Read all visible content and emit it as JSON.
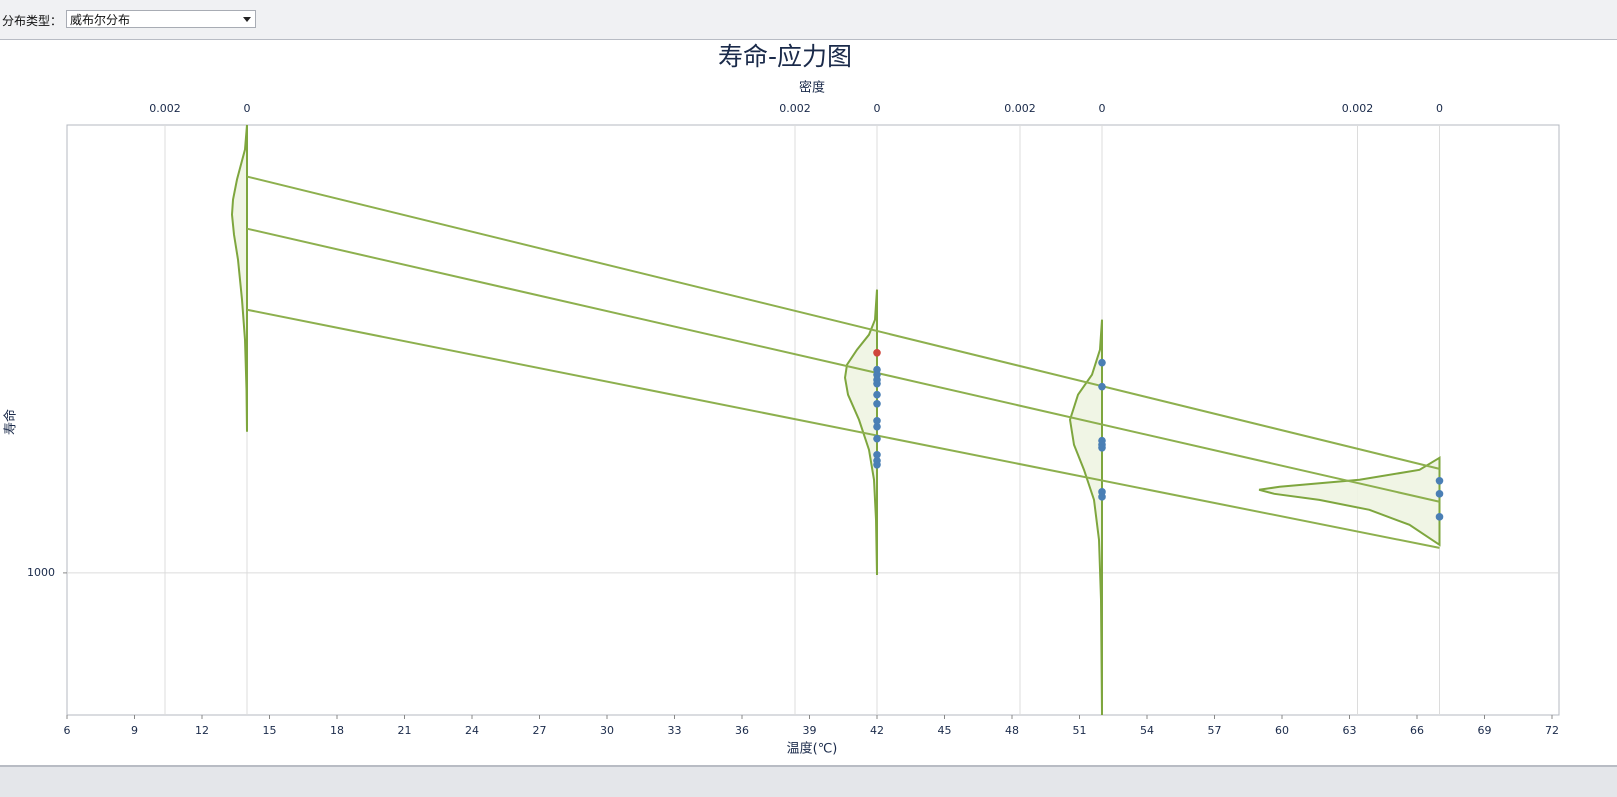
{
  "toolbar": {
    "label": "分布类型：",
    "select": "威布尔分布"
  },
  "chart_data": {
    "type": "scatter",
    "title": "寿命-应力图",
    "density_label": "密度",
    "x_label": "温度(℃)",
    "y_label": "寿命",
    "xlim": [
      6,
      72
    ],
    "xticks": [
      6,
      9,
      12,
      15,
      18,
      21,
      24,
      27,
      30,
      33,
      36,
      39,
      42,
      45,
      48,
      51,
      54,
      57,
      60,
      63,
      66,
      69,
      72
    ],
    "ylim": [
      470,
      10800
    ],
    "yticks": [
      1000
    ],
    "log_y": true,
    "grid": true,
    "series": [
      {
        "color": "#4a7fb5",
        "x": [
          42,
          42,
          42,
          42,
          42,
          42,
          42,
          42,
          42,
          42,
          42,
          42,
          52,
          52,
          52,
          52,
          52,
          52,
          52,
          67,
          67,
          67
        ],
        "values": [
          2943,
          2866,
          2791,
          2733,
          2577,
          2456,
          2244,
          2174,
          2040,
          1873,
          1814,
          1776,
          3055,
          2690,
          2018,
          1975,
          1944,
          1538,
          1498,
          1631,
          1522,
          1347
        ]
      },
      {
        "color": "#d0463c",
        "x": [
          42
        ],
        "values": [
          3220
        ]
      }
    ],
    "life_lines": {
      "color": "#8db04e",
      "x": [
        14,
        67
      ],
      "lines": [
        [
          8213,
          1738
        ],
        [
          6226,
          1459
        ],
        [
          4048,
          1142
        ]
      ]
    },
    "density_lim": [
      0,
      0.002
    ],
    "density_color": "#7ea63e",
    "density_fill": "#eef4e2",
    "densities": [
      {
        "at": 14,
        "ticks": [
          0.002,
          0
        ],
        "life": [
          10800,
          9484,
          8084,
          7265,
          6711,
          6033,
          5284,
          4271,
          3452,
          2647,
          2117
        ],
        "density": [
          0,
          4.9e-05,
          0.000244,
          0.000341,
          0.000366,
          0.000317,
          0.00022,
          0.000122,
          4.9e-05,
          1.2e-05,
          0
        ]
      },
      {
        "at": 42,
        "ticks": [
          0.002,
          0
        ],
        "life": [
          4504,
          3839,
          3545,
          3273,
          3022,
          2821,
          2577,
          2256,
          1923,
          1640,
          1326,
          989
        ],
        "density": [
          0,
          4.9e-05,
          0.000195,
          0.000488,
          0.000732,
          0.00078,
          0.000707,
          0.000439,
          0.000195,
          7.3e-05,
          2.4e-05,
          0
        ]
      },
      {
        "at": 52,
        "ticks": [
          0.002,
          0
        ],
        "life": [
          3839,
          3273,
          2867,
          2577,
          2256,
          1975,
          1729,
          1474,
          1192,
          866,
          470
        ],
        "density": [
          0,
          4.9e-05,
          0.000244,
          0.000585,
          0.00078,
          0.000683,
          0.000439,
          0.000195,
          7.3e-05,
          2.4e-05,
          0
        ]
      },
      {
        "at": 67,
        "ticks": [
          0.002,
          0
        ],
        "life": [
          1843,
          1729,
          1640,
          1580,
          1555,
          1522,
          1474,
          1398,
          1291,
          1224,
          1161
        ],
        "density": [
          0,
          0.000488,
          0.00195,
          0.0039,
          0.0044,
          0.00403,
          0.00293,
          0.00171,
          0.000732,
          0.000366,
          0
        ]
      }
    ]
  }
}
